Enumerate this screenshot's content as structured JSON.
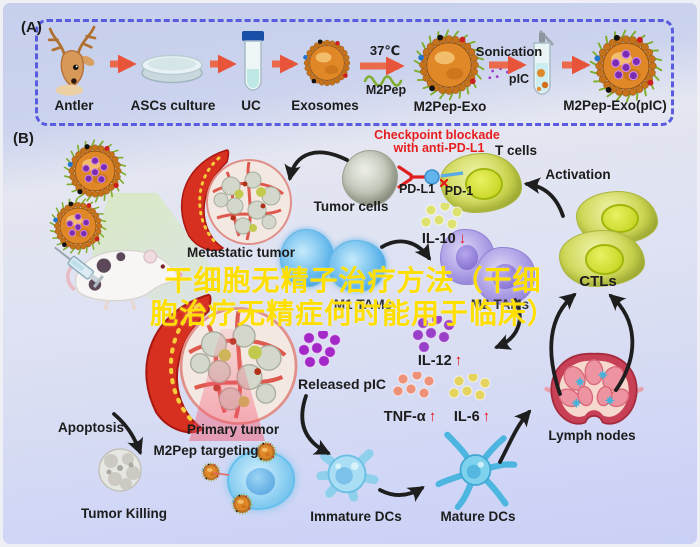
{
  "frame": {
    "panel_a_label": "(A)",
    "panel_b_label": "(B)"
  },
  "panel_a": {
    "items": [
      {
        "id": "antler",
        "label": "Antler"
      },
      {
        "id": "ascs_culture",
        "label": "ASCs culture"
      },
      {
        "id": "uc",
        "label": "UC"
      },
      {
        "id": "exosomes",
        "label": "Exosomes"
      },
      {
        "id": "m2pep_exo",
        "label": "M2Pep-Exo"
      },
      {
        "id": "m2pep_exo_pic",
        "label": "M2Pep-Exo(pIC)"
      }
    ],
    "temp": "37℃",
    "m2pep": "M2Pep",
    "sonication": "Sonication",
    "pic": "pIC"
  },
  "panel_b": {
    "checkpoint_line1": "Checkpoint blockade",
    "checkpoint_line2": "with anti-PD-L1",
    "t_cells": "T cells",
    "tumor_cells": "Tumor cells",
    "pd_l1": "PD-L1",
    "pd_1": "PD-1",
    "activation": "Activation",
    "ctls": "CTLs",
    "metastatic_tumor": "Metastatic tumor",
    "il10": "IL-10",
    "il12": "IL-12",
    "tnf_alpha": "TNF-α",
    "il6": "IL-6",
    "m1_tams": "M1 TAMs",
    "m2_tams": "M2 TAMs",
    "released_pic": "Released pIC",
    "primary_tumor": "Primary tumor",
    "m2pep_targeting": "M2Pep targeting",
    "apoptosis": "Apoptosis",
    "tumor_killing": "Tumor Killing",
    "immature_dcs": "Immature DCs",
    "mature_dcs": "Mature DCs",
    "lymph_nodes": "Lymph nodes",
    "arrow_up": "↑",
    "arrow_down": "↓"
  },
  "watermark": {
    "line1": "干细胞无精子治疗方法（干细",
    "line2": "胞治疗无精症何时能用于临床）",
    "color": "#ffdf00"
  },
  "colors": {
    "dashed_border": "#5a5ce0",
    "alert_red": "#e81e1e",
    "exosome_orange": "#e08828",
    "m2pep_green": "#7fae2e",
    "pic_purple": "#8a2fc0",
    "tumor_red": "#d83020",
    "lymph_pink": "#c84055",
    "dc_blue": "#4cb6e0"
  }
}
